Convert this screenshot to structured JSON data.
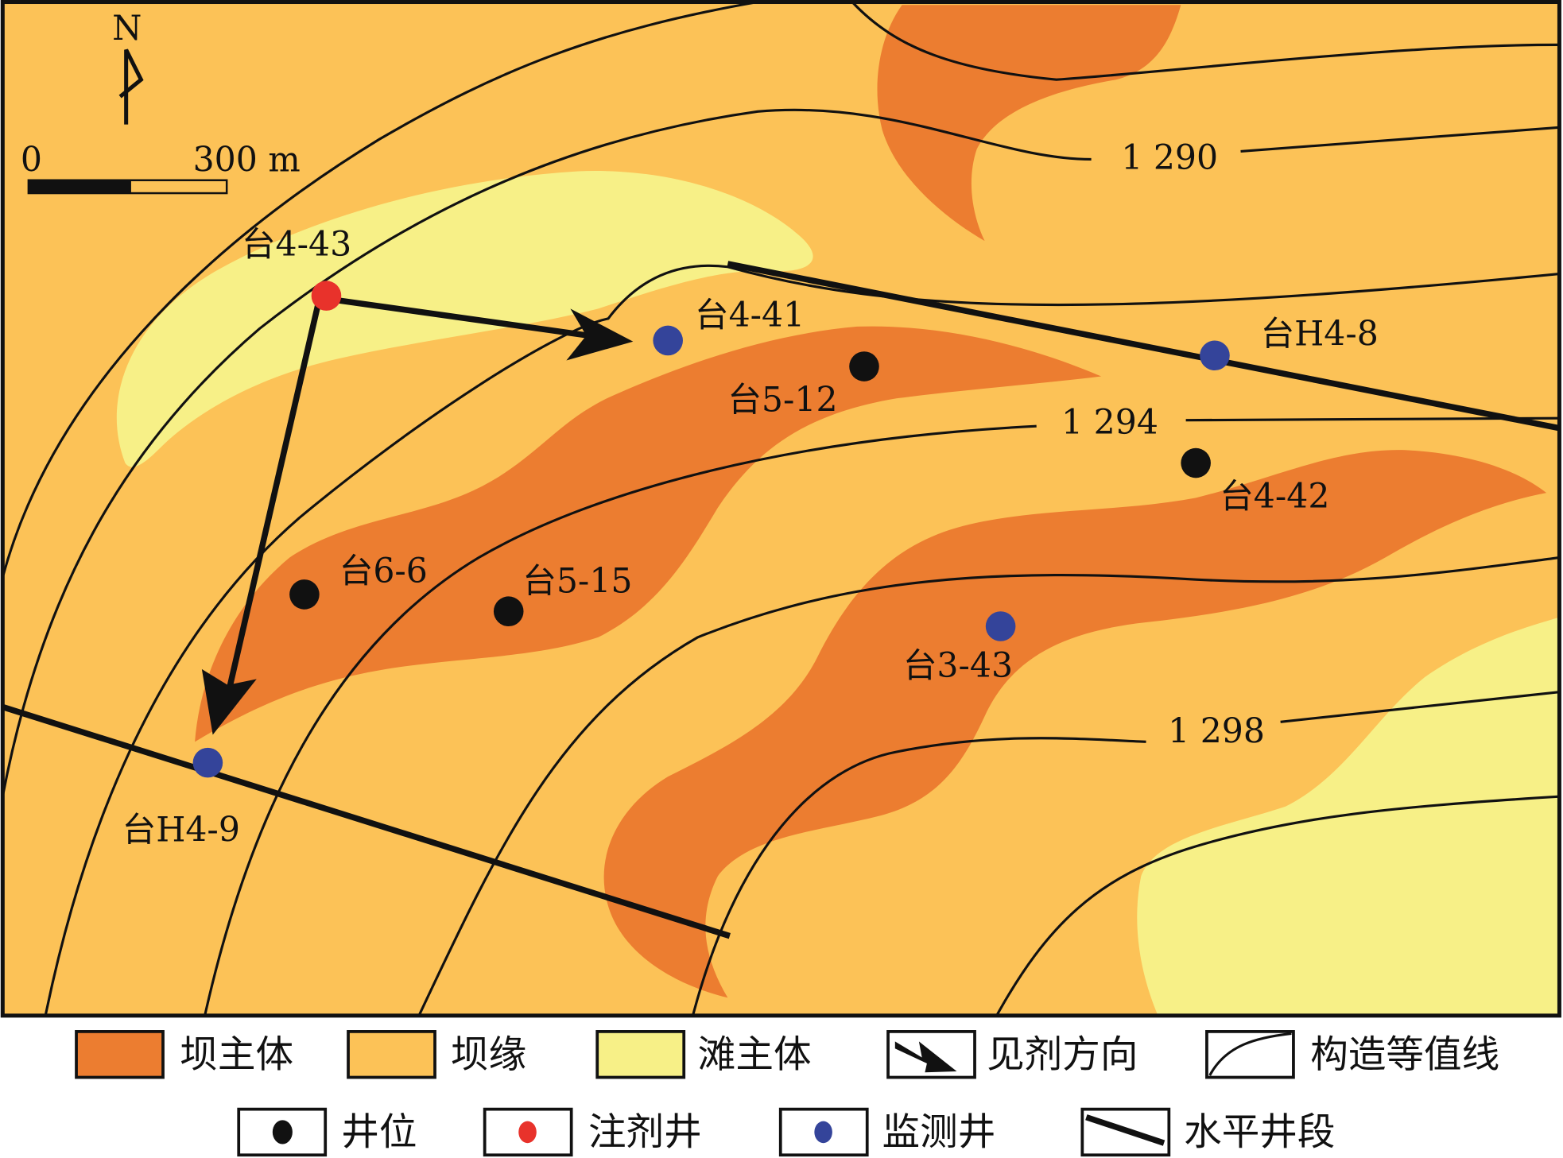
{
  "colors": {
    "dam_main": "#EC7D30",
    "dam_edge": "#FCC257",
    "beach_main": "#F7F087",
    "injection_well": "#E8322B",
    "monitoring_well": "#34449A",
    "well": "#111111"
  },
  "map": {
    "north_label": "N",
    "scale": {
      "start": "0",
      "end": "300 m"
    },
    "contour_labels": [
      "1 290",
      "1 294",
      "1 298"
    ],
    "wells": [
      {
        "name": "台4-43",
        "type": "injection"
      },
      {
        "name": "台4-41",
        "type": "monitoring"
      },
      {
        "name": "台H4-8",
        "type": "monitoring"
      },
      {
        "name": "台5-12",
        "type": "well"
      },
      {
        "name": "台4-42",
        "type": "well"
      },
      {
        "name": "台6-6",
        "type": "well"
      },
      {
        "name": "台5-15",
        "type": "well"
      },
      {
        "name": "台3-43",
        "type": "monitoring"
      },
      {
        "name": "台H4-9",
        "type": "monitoring"
      }
    ]
  },
  "legend": {
    "row1": [
      "坝主体",
      "坝缘",
      "滩主体",
      "见剂方向",
      "构造等值线"
    ],
    "row2": [
      "井位",
      "注剂井",
      "监测井",
      "水平井段"
    ]
  }
}
